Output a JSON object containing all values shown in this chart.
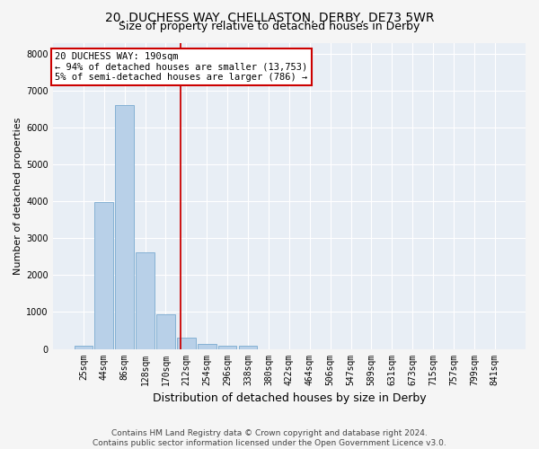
{
  "title": "20, DUCHESS WAY, CHELLASTON, DERBY, DE73 5WR",
  "subtitle": "Size of property relative to detached houses in Derby",
  "xlabel": "Distribution of detached houses by size in Derby",
  "ylabel": "Number of detached properties",
  "bin_labels": [
    "25sqm",
    "44sqm",
    "86sqm",
    "128sqm",
    "170sqm",
    "212sqm",
    "254sqm",
    "296sqm",
    "338sqm",
    "380sqm",
    "422sqm",
    "464sqm",
    "506sqm",
    "547sqm",
    "589sqm",
    "631sqm",
    "673sqm",
    "715sqm",
    "757sqm",
    "799sqm",
    "841sqm"
  ],
  "bar_values": [
    75,
    3980,
    6600,
    2620,
    950,
    310,
    125,
    95,
    75,
    0,
    0,
    0,
    0,
    0,
    0,
    0,
    0,
    0,
    0,
    0,
    0
  ],
  "bar_color": "#b8d0e8",
  "bar_edgecolor": "#7aaacf",
  "vline_x": 4.72,
  "vline_color": "#cc0000",
  "annotation_text": "20 DUCHESS WAY: 190sqm\n← 94% of detached houses are smaller (13,753)\n5% of semi-detached houses are larger (786) →",
  "annotation_box_color": "#cc0000",
  "ylim": [
    0,
    8300
  ],
  "yticks": [
    0,
    1000,
    2000,
    3000,
    4000,
    5000,
    6000,
    7000,
    8000
  ],
  "footer1": "Contains HM Land Registry data © Crown copyright and database right 2024.",
  "footer2": "Contains public sector information licensed under the Open Government Licence v3.0.",
  "fig_background": "#f5f5f5",
  "plot_background": "#e8eef5",
  "grid_color": "#ffffff",
  "title_fontsize": 10,
  "subtitle_fontsize": 9,
  "xlabel_fontsize": 9,
  "ylabel_fontsize": 8,
  "tick_fontsize": 7,
  "annot_fontsize": 7.5,
  "footer_fontsize": 6.5
}
